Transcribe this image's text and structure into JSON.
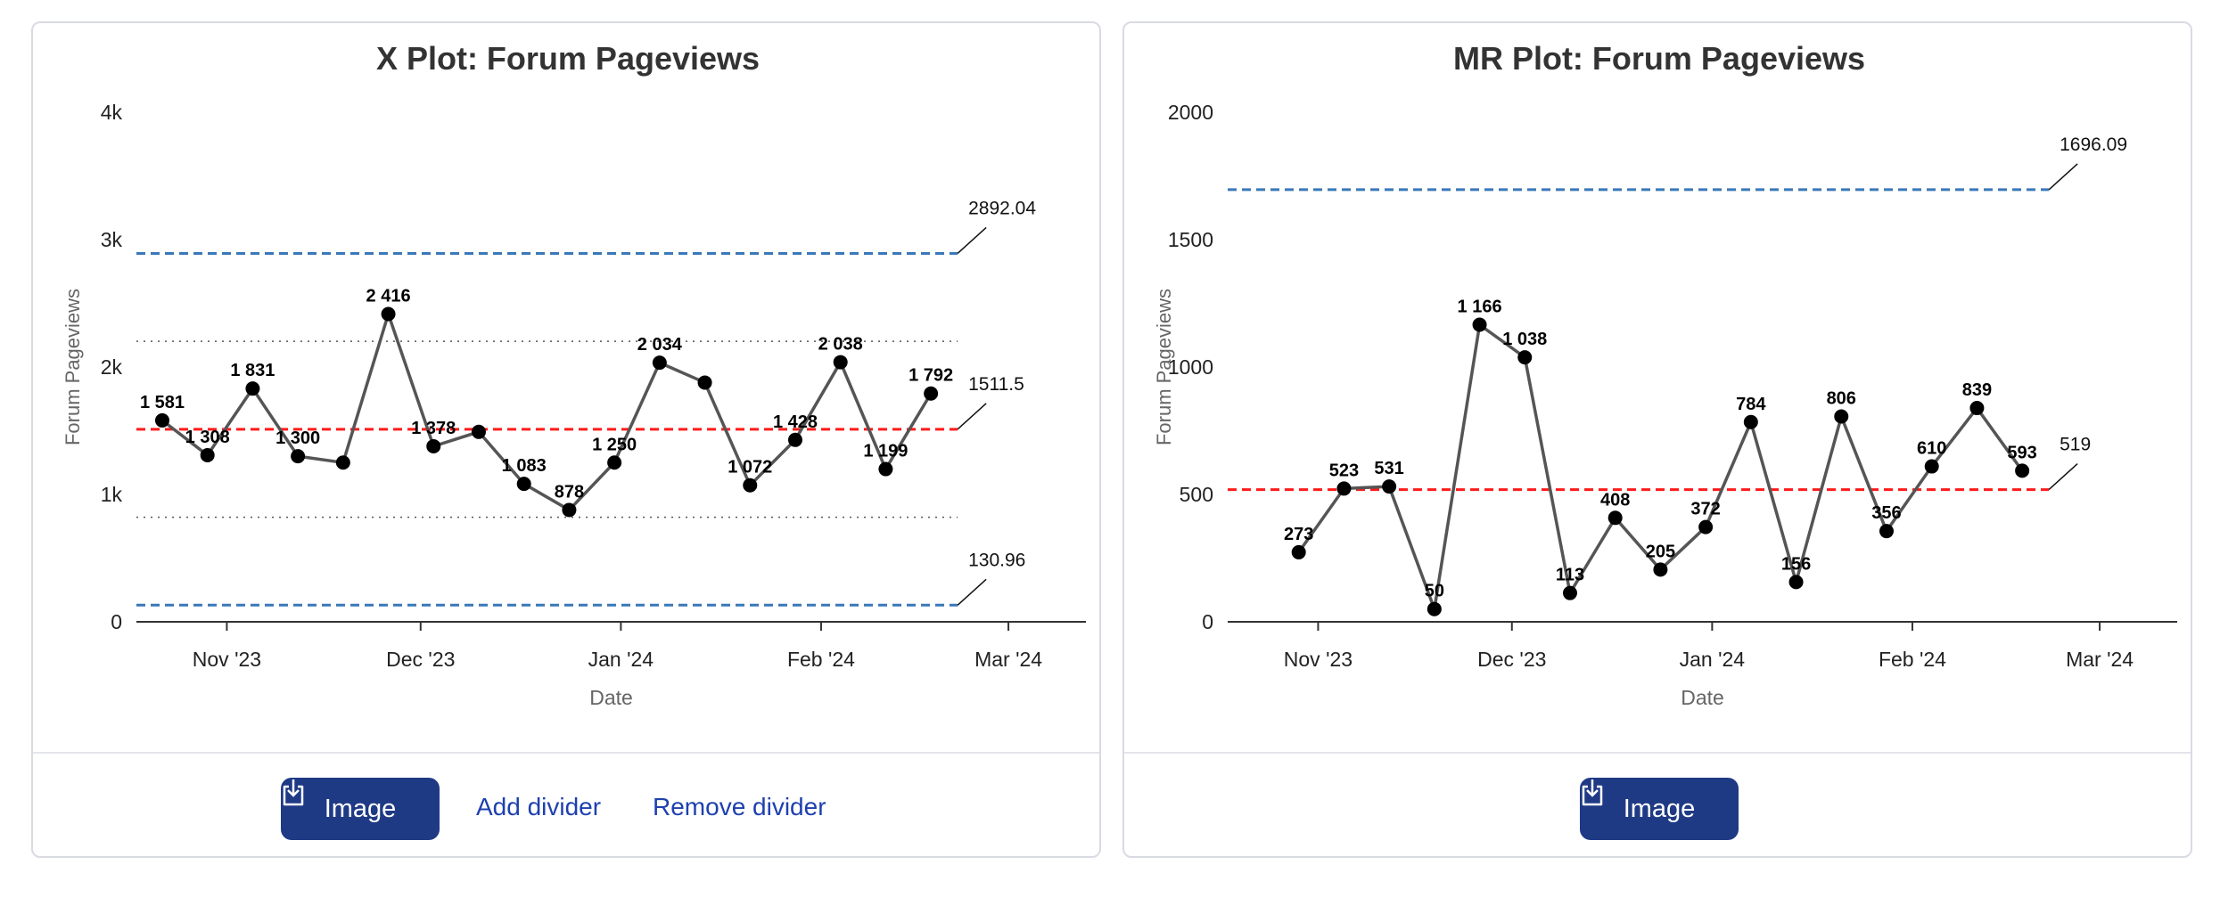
{
  "chart_data": [
    {
      "type": "line",
      "title": "X Plot: Forum Pageviews",
      "xlabel": "Date",
      "ylabel": "Forum Pageviews",
      "ylim": [
        0,
        4000
      ],
      "yticks": [
        0,
        1000,
        2000,
        3000,
        4000
      ],
      "ytick_labels": [
        "0",
        "1k",
        "2k",
        "3k",
        "4k"
      ],
      "xlim": [
        "2023-10-18",
        "2024-03-13"
      ],
      "xticks": [
        "2023-11-01",
        "2023-12-01",
        "2024-01-01",
        "2024-02-01",
        "2024-03-01"
      ],
      "xtick_labels": [
        "Nov '23",
        "Dec '23",
        "Jan '24",
        "Feb '24",
        "Mar '24"
      ],
      "grid": false,
      "x": [
        "2023-10-22",
        "2023-10-29",
        "2023-11-05",
        "2023-11-12",
        "2023-11-19",
        "2023-11-26",
        "2023-12-03",
        "2023-12-10",
        "2023-12-17",
        "2023-12-24",
        "2023-12-31",
        "2024-01-07",
        "2024-01-14",
        "2024-01-21",
        "2024-01-28",
        "2024-02-04",
        "2024-02-11",
        "2024-02-18"
      ],
      "values": [
        1581,
        1308,
        1831,
        1300,
        1250,
        2416,
        1378,
        1491,
        1083,
        878,
        1250,
        2034,
        1878,
        1072,
        1428,
        2038,
        1199,
        1792
      ],
      "point_labels": [
        "1 581",
        "1 308",
        "1 831",
        "1 300",
        "",
        "2 416",
        "1 378",
        "",
        "1 083",
        "878",
        "1 250",
        "2 034",
        "",
        "1 072",
        "1 428",
        "2 038",
        "1 199",
        "1 792"
      ],
      "limits": [
        {
          "kind": "ucl",
          "value": 2892.04,
          "label": "2892.04",
          "color": "#3a78b8",
          "style": "dashed"
        },
        {
          "kind": "center",
          "value": 1511.5,
          "label": "1511.5",
          "color": "#ff1a1a",
          "style": "dashed"
        },
        {
          "kind": "lcl",
          "value": 130.96,
          "label": "130.96",
          "color": "#3a78b8",
          "style": "dashed"
        }
      ],
      "zones": [
        2201.8,
        821.2
      ],
      "line_color": "#555555"
    },
    {
      "type": "line",
      "title": "MR Plot: Forum Pageviews",
      "xlabel": "Date",
      "ylabel": "Forum Pageviews",
      "ylim": [
        0,
        2000
      ],
      "yticks": [
        0,
        500,
        1000,
        1500,
        2000
      ],
      "ytick_labels": [
        "0",
        "500",
        "1000",
        "1500",
        "2000"
      ],
      "xlim": [
        "2023-10-18",
        "2024-03-13"
      ],
      "xticks": [
        "2023-11-01",
        "2023-12-01",
        "2024-01-01",
        "2024-02-01",
        "2024-03-01"
      ],
      "xtick_labels": [
        "Nov '23",
        "Dec '23",
        "Jan '24",
        "Feb '24",
        "Mar '24"
      ],
      "grid": false,
      "x": [
        "2023-10-29",
        "2023-11-05",
        "2023-11-12",
        "2023-11-19",
        "2023-11-26",
        "2023-12-03",
        "2023-12-10",
        "2023-12-17",
        "2023-12-24",
        "2023-12-31",
        "2024-01-07",
        "2024-01-14",
        "2024-01-21",
        "2024-01-28",
        "2024-02-04",
        "2024-02-11",
        "2024-02-18"
      ],
      "values": [
        273,
        523,
        531,
        50,
        1166,
        1038,
        113,
        408,
        205,
        372,
        784,
        156,
        806,
        356,
        610,
        839,
        593
      ],
      "point_labels": [
        "273",
        "523",
        "531",
        "50",
        "1 166",
        "1 038",
        "113",
        "408",
        "205",
        "372",
        "784",
        "156",
        "806",
        "356",
        "610",
        "839",
        "593"
      ],
      "limits": [
        {
          "kind": "ucl",
          "value": 1696.09,
          "label": "1696.09",
          "color": "#3a78b8",
          "style": "dashed"
        },
        {
          "kind": "center",
          "value": 519,
          "label": "519",
          "color": "#ff1a1a",
          "style": "dashed"
        }
      ],
      "zones": [],
      "line_color": "#555555"
    }
  ],
  "buttons": {
    "image_label": "Image",
    "add_divider_label": "Add divider",
    "remove_divider_label": "Remove divider",
    "primary_color": "#1f3a85",
    "link_color": "#1e40af",
    "download_icon": "download-icon"
  }
}
